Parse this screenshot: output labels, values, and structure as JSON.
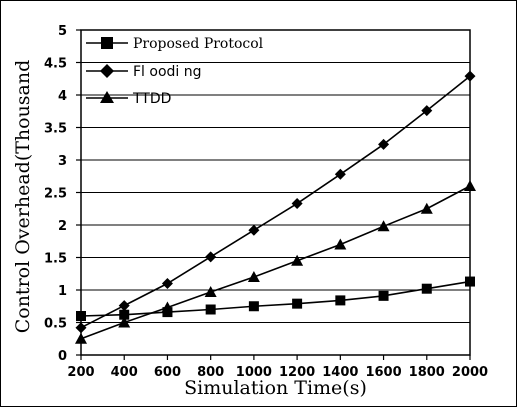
{
  "chart_data": {
    "type": "line",
    "xlabel": "Simulation Time(s)",
    "ylabel": "Control Overhead(Thousand",
    "x": [
      200,
      400,
      600,
      800,
      1000,
      1200,
      1400,
      1600,
      1800,
      2000
    ],
    "xlim": [
      200,
      2000
    ],
    "ylim": [
      0,
      5
    ],
    "x_ticks": [
      "200",
      "400",
      "600",
      "800",
      "1000",
      "1200",
      "1400",
      "1600",
      "1800",
      "2000"
    ],
    "y_ticks": [
      "0",
      "0.5",
      "1",
      "1.5",
      "2",
      "2.5",
      "3",
      "3.5",
      "4",
      "4.5",
      "5"
    ],
    "grid": "horizontal",
    "legend_position": "top-left",
    "series": [
      {
        "name": "Proposed Protocol",
        "marker": "square",
        "values": [
          0.6,
          0.62,
          0.66,
          0.7,
          0.75,
          0.79,
          0.84,
          0.91,
          1.02,
          1.13
        ]
      },
      {
        "name": "Fl oodi ng",
        "marker": "diamond",
        "values": [
          0.42,
          0.76,
          1.1,
          1.51,
          1.92,
          2.33,
          2.78,
          3.24,
          3.76,
          4.29
        ]
      },
      {
        "name": "TTDD",
        "marker": "triangle",
        "values": [
          0.25,
          0.5,
          0.73,
          0.97,
          1.2,
          1.45,
          1.7,
          1.98,
          2.25,
          2.6
        ]
      }
    ],
    "colors": {
      "line": "#000000",
      "grid": "#000000"
    }
  }
}
